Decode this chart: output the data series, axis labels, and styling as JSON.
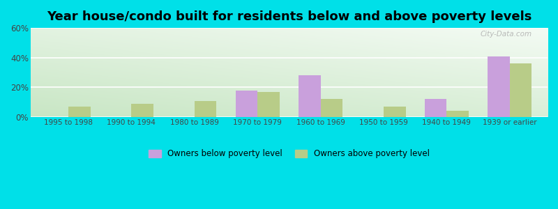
{
  "title": "Year house/condo built for residents below and above poverty levels",
  "categories": [
    "1995 to 1998",
    "1990 to 1994",
    "1980 to 1989",
    "1970 to 1979",
    "1960 to 1969",
    "1950 to 1959",
    "1940 to 1949",
    "1939 or earlier"
  ],
  "below_poverty": [
    0,
    0,
    0,
    18,
    28,
    0,
    12,
    41
  ],
  "above_poverty": [
    7,
    9,
    11,
    17,
    12,
    7,
    4,
    36
  ],
  "below_color": "#c9a0dc",
  "above_color": "#b8cc88",
  "ylim": [
    0,
    60
  ],
  "yticks": [
    0,
    20,
    40,
    60
  ],
  "ytick_labels": [
    "0%",
    "20%",
    "40%",
    "60%"
  ],
  "legend_below": "Owners below poverty level",
  "legend_above": "Owners above poverty level",
  "bar_width": 0.35,
  "outer_bg": "#00e0e8",
  "title_fontsize": 13,
  "watermark": "City-Data.com",
  "bg_left_bottom": "#c8e6c4",
  "bg_right_top": "#f4fbf4"
}
